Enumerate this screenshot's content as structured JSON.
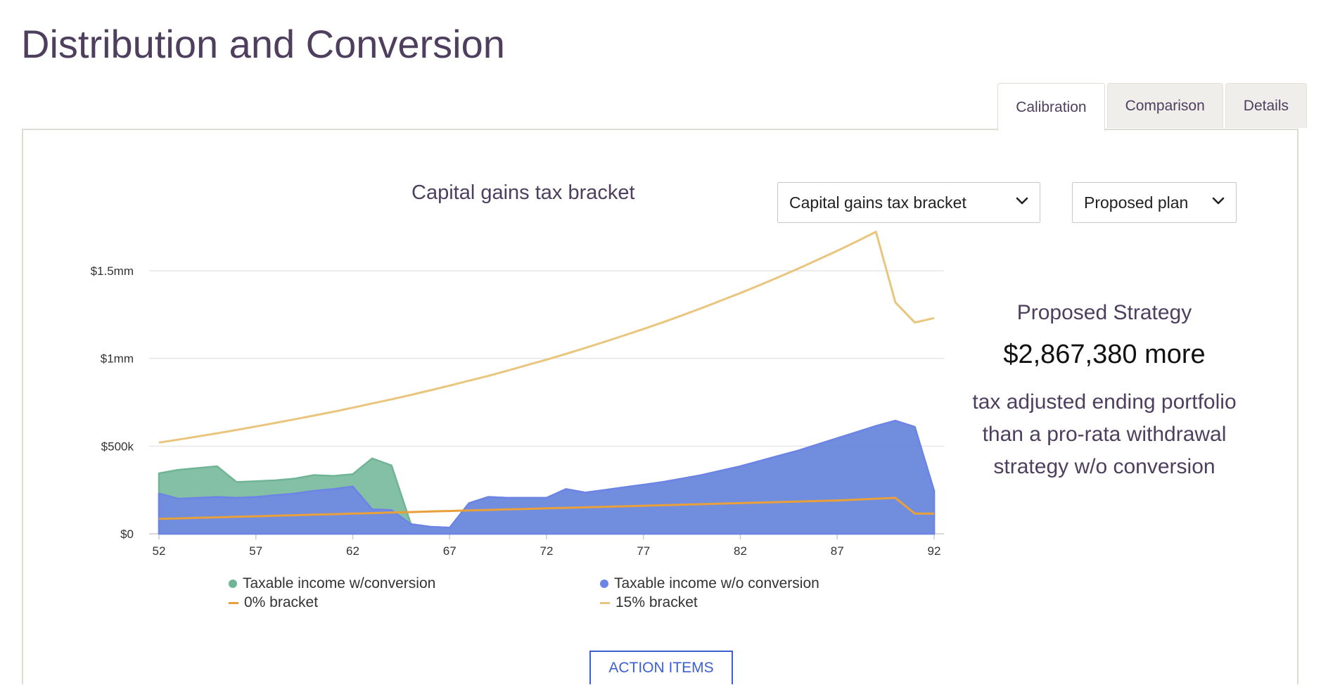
{
  "page": {
    "title": "Distribution and Conversion"
  },
  "tabs": [
    {
      "label": "Calibration",
      "active": true
    },
    {
      "label": "Comparison",
      "active": false
    },
    {
      "label": "Details",
      "active": false
    }
  ],
  "controls": {
    "metric_select": "Capital gains tax bracket",
    "plan_select": "Proposed plan"
  },
  "summary": {
    "label": "Proposed Strategy",
    "amount": "$2,867,380 more",
    "description": "tax adjusted ending portfolio than a pro-rata withdrawal strategy w/o conversion"
  },
  "action_button": "ACTION ITEMS",
  "colors": {
    "with_conversion": "#6fb595",
    "without_conversion": "#6d84e6",
    "bracket_0": "#e8a03a",
    "bracket_15": "#e9c57e",
    "accent": "#3c5fd6"
  },
  "chart_data": {
    "type": "area",
    "title": "Capital gains tax bracket",
    "xlabel": "",
    "ylabel": "",
    "xlim": [
      52,
      92
    ],
    "ylim": [
      0,
      1500000
    ],
    "x_ticks": [
      52,
      57,
      62,
      67,
      72,
      77,
      82,
      87,
      92
    ],
    "y_ticks": [
      0,
      500000,
      1000000,
      1500000
    ],
    "y_tick_labels": [
      "$0",
      "$500k",
      "$1mm",
      "$1.5mm"
    ],
    "grid": true,
    "legend_position": "bottom",
    "x": [
      52,
      53,
      54,
      55,
      56,
      57,
      58,
      59,
      60,
      61,
      62,
      63,
      64,
      65,
      66,
      67,
      68,
      69,
      70,
      71,
      72,
      73,
      74,
      75,
      76,
      77,
      78,
      79,
      80,
      81,
      82,
      83,
      84,
      85,
      86,
      87,
      88,
      89,
      90,
      91,
      92
    ],
    "series": [
      {
        "name": "Taxable income w/conversion",
        "kind": "area",
        "color": "#6fb595",
        "values": [
          345000,
          365000,
          375000,
          385000,
          295000,
          300000,
          305000,
          315000,
          335000,
          330000,
          340000,
          430000,
          390000,
          55000,
          40000,
          35000,
          175000,
          210000,
          205000,
          205000,
          205000,
          255000,
          235000,
          250000,
          265000,
          280000,
          295000,
          315000,
          335000,
          360000,
          385000,
          415000,
          445000,
          475000,
          510000,
          545000,
          580000,
          615000,
          645000,
          610000,
          245000
        ]
      },
      {
        "name": "Taxable income w/o conversion",
        "kind": "area",
        "color": "#6d84e6",
        "values": [
          230000,
          200000,
          205000,
          210000,
          205000,
          210000,
          220000,
          230000,
          245000,
          255000,
          270000,
          140000,
          135000,
          55000,
          40000,
          35000,
          175000,
          210000,
          205000,
          205000,
          205000,
          255000,
          235000,
          250000,
          265000,
          280000,
          295000,
          315000,
          335000,
          360000,
          385000,
          415000,
          445000,
          475000,
          510000,
          545000,
          580000,
          615000,
          645000,
          610000,
          245000
        ]
      },
      {
        "name": "0% bracket",
        "kind": "line",
        "color": "#e8a03a",
        "values": [
          85000,
          88000,
          91000,
          94000,
          97000,
          100000,
          103000,
          106000,
          109000,
          112000,
          115000,
          118000,
          121000,
          124000,
          127000,
          130000,
          133000,
          136000,
          139000,
          142000,
          145000,
          148000,
          151000,
          154000,
          157000,
          160000,
          163000,
          166000,
          169000,
          172000,
          175000,
          178000,
          181000,
          184000,
          187000,
          190000,
          195000,
          200000,
          205000,
          115000,
          115000
        ]
      },
      {
        "name": "15% bracket",
        "kind": "line",
        "color": "#e9c57e",
        "values": [
          520000,
          537000,
          555000,
          573000,
          592000,
          612000,
          632000,
          653000,
          674000,
          696000,
          719000,
          743000,
          767000,
          792000,
          818000,
          845000,
          873000,
          901000,
          931000,
          962000,
          993000,
          1026000,
          1060000,
          1095000,
          1131000,
          1168000,
          1206000,
          1246000,
          1287000,
          1330000,
          1373000,
          1418000,
          1465000,
          1513000,
          1563000,
          1614000,
          1667000,
          1722000,
          1320000,
          1205000,
          1230000
        ]
      }
    ]
  }
}
